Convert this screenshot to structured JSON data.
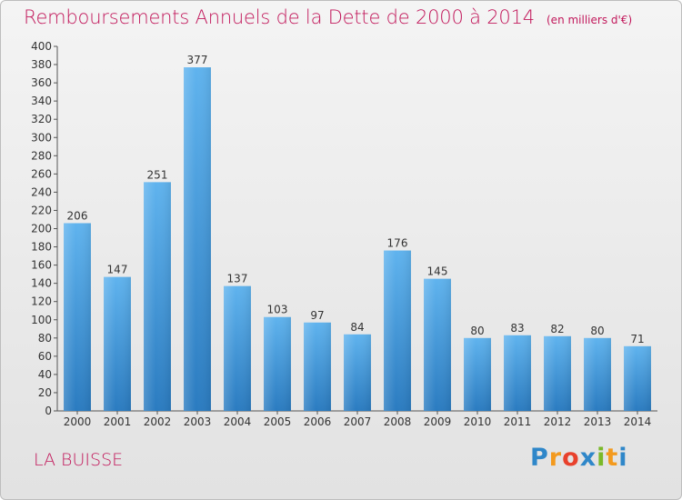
{
  "chart_data": {
    "type": "bar",
    "title": "Remboursements Annuels de la Dette de 2000 à 2014",
    "subtitle": "(en milliers d'€)",
    "categories": [
      "2000",
      "2001",
      "2002",
      "2003",
      "2004",
      "2005",
      "2006",
      "2007",
      "2008",
      "2009",
      "2010",
      "2011",
      "2012",
      "2013",
      "2014"
    ],
    "values": [
      206,
      147,
      251,
      377,
      137,
      103,
      97,
      84,
      176,
      145,
      80,
      83,
      82,
      80,
      71
    ],
    "ylim": [
      0,
      400
    ],
    "ytick_step": 20,
    "grid": false,
    "legend": "none",
    "bar_color": "#3d97dc"
  },
  "footer": {
    "place": "LA BUISSE",
    "logo_letters": [
      "P",
      "r",
      "o",
      "x",
      "i",
      "t",
      "i"
    ],
    "logo_colors": [
      "#2f87c9",
      "#f39a1e",
      "#e8412c",
      "#2f87c9",
      "#7ab929",
      "#f39a1e",
      "#2f87c9"
    ]
  },
  "colors": {
    "accent": "#c2185b"
  }
}
